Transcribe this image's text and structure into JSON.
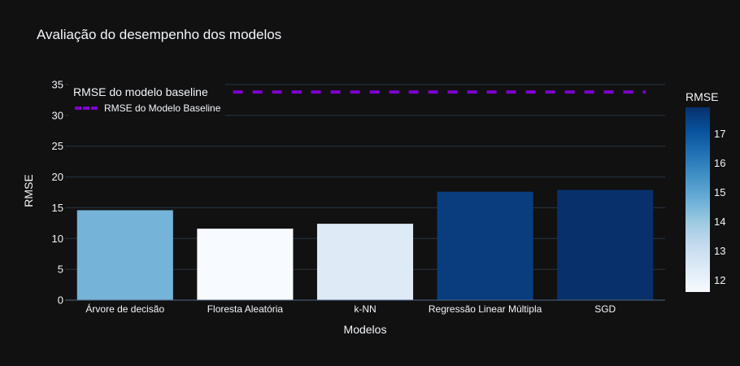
{
  "chart_data": {
    "type": "bar",
    "title": "Avaliação do desempenho dos modelos",
    "xlabel": "Modelos",
    "ylabel": "RMSE",
    "categories": [
      "Árvore de decisão",
      "Floresta Aleatória",
      "k-NN",
      "Regressão Linear Múltipla",
      "SGD"
    ],
    "values": [
      14.6,
      11.6,
      12.4,
      17.6,
      17.9
    ],
    "ylim": [
      0,
      35
    ],
    "yticks": [
      0,
      5,
      10,
      15,
      20,
      25,
      30,
      35
    ],
    "grid": true,
    "baseline": {
      "name": "RMSE do Modelo Baseline",
      "value": 33.8,
      "color": "#8000d0"
    },
    "legend": {
      "title": "RMSE do modelo baseline",
      "position": "top-left"
    },
    "colorbar": {
      "title": "RMSE",
      "range": [
        11.6,
        17.9
      ],
      "ticks": [
        12,
        13,
        14,
        15,
        16,
        17
      ],
      "colorscale": "Blues"
    }
  }
}
